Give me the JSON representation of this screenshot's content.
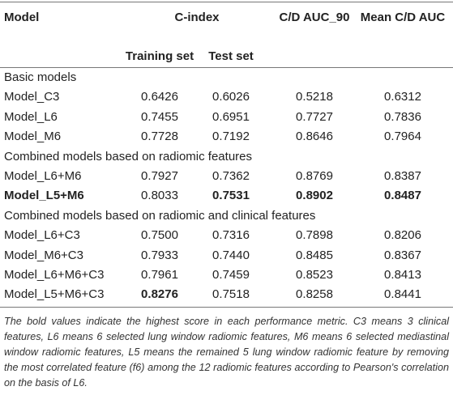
{
  "header": {
    "columns": [
      "Model",
      "C-index",
      "C/D AUC_90",
      "Mean C/D AUC"
    ],
    "subcolumns": [
      "Training set",
      "Test set"
    ]
  },
  "table": {
    "rows": [
      {
        "group": "Basic models"
      },
      {
        "cells": [
          "Model_C3",
          "0.6426",
          "0.6026",
          "0.5218",
          "0.6312"
        ],
        "bold": []
      },
      {
        "cells": [
          "Model_L6",
          "0.7455",
          "0.6951",
          "0.7727",
          "0.7836"
        ],
        "bold": []
      },
      {
        "cells": [
          "Model_M6",
          "0.7728",
          "0.7192",
          "0.8646",
          "0.7964"
        ],
        "bold": []
      },
      {
        "group": "Combined models based on radiomic features"
      },
      {
        "cells": [
          "Model_L6+M6",
          "0.7927",
          "0.7362",
          "0.8769",
          "0.8387"
        ],
        "bold": []
      },
      {
        "cells": [
          "Model_L5+M6",
          "0.8033",
          "0.7531",
          "0.8902",
          "0.8487"
        ],
        "bold": [
          0,
          2,
          3,
          4
        ]
      },
      {
        "group": "Combined models based on radiomic and clinical features"
      },
      {
        "cells": [
          "Model_L6+C3",
          "0.7500",
          "0.7316",
          "0.7898",
          "0.8206"
        ],
        "bold": []
      },
      {
        "cells": [
          "Model_M6+C3",
          "0.7933",
          "0.7440",
          "0.8485",
          "0.8367"
        ],
        "bold": []
      },
      {
        "cells": [
          "Model_L6+M6+C3",
          "0.7961",
          "0.7459",
          "0.8523",
          "0.8413"
        ],
        "bold": []
      },
      {
        "cells": [
          "Model_L5+M6+C3",
          "0.8276",
          "0.7518",
          "0.8258",
          "0.8441"
        ],
        "bold": [
          1
        ]
      }
    ]
  },
  "footnote": "The bold values indicate the highest score in each performance metric. C3 means 3 clinical features, L6 means 6 selected lung window radiomic features, M6 means 6 selected mediastinal window radiomic features, L5 means the remained 5 lung window radiomic feature by removing the most correlated feature (f6) among the 12 radiomic features according to Pearson's correlation on the basis of L6."
}
